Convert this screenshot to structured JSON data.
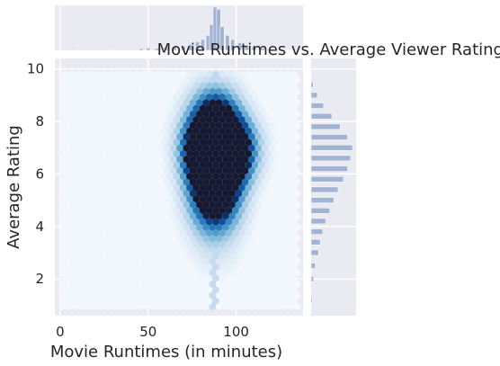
{
  "chart_data": {
    "type": "heatmap",
    "subtype": "hexbin-joint-plot",
    "title": "Movie Runtimes vs. Average Viewer Ratings",
    "xlabel": "Movie Runtimes (in minutes)",
    "ylabel": "Average Rating",
    "xlim": [
      -3,
      138
    ],
    "ylim": [
      0.6,
      10.4
    ],
    "xticks": [
      0,
      50,
      100
    ],
    "yticks": [
      2,
      4,
      6,
      8,
      10
    ],
    "grid": true,
    "colormap": "Blues (white to navy)",
    "background": "#eaeaf2",
    "marginal_histograms": {
      "top_x": "Movie Runtimes (in minutes)",
      "right_y": "Average Rating"
    },
    "hexbin_density": [
      {
        "x": 88,
        "y": 9.0,
        "level": 0.3
      },
      {
        "x": 88,
        "y": 8.5,
        "level": 0.5
      },
      {
        "x": 88,
        "y": 8.0,
        "level": 0.7
      },
      {
        "x": 88,
        "y": 7.6,
        "level": 0.85
      },
      {
        "x": 88,
        "y": 7.2,
        "level": 0.9
      },
      {
        "x": 88,
        "y": 6.8,
        "level": 1.0
      },
      {
        "x": 88,
        "y": 6.4,
        "level": 0.95
      },
      {
        "x": 88,
        "y": 6.0,
        "level": 0.9
      },
      {
        "x": 88,
        "y": 5.6,
        "level": 0.8
      },
      {
        "x": 88,
        "y": 5.2,
        "level": 0.65
      },
      {
        "x": 88,
        "y": 4.8,
        "level": 0.5
      },
      {
        "x": 88,
        "y": 4.4,
        "level": 0.35
      },
      {
        "x": 88,
        "y": 4.0,
        "level": 0.25
      },
      {
        "x": 88,
        "y": 3.4,
        "level": 0.15
      },
      {
        "x": 88,
        "y": 2.6,
        "level": 0.08
      },
      {
        "x": 95,
        "y": 7.0,
        "level": 0.7
      },
      {
        "x": 98,
        "y": 6.4,
        "level": 0.6
      },
      {
        "x": 100,
        "y": 7.4,
        "level": 0.45
      },
      {
        "x": 82,
        "y": 6.6,
        "level": 0.45
      },
      {
        "x": 80,
        "y": 7.4,
        "level": 0.35
      }
    ],
    "top_histogram": {
      "bin_centers": [
        10,
        20,
        30,
        40,
        46,
        50,
        55,
        60,
        65,
        70,
        74,
        78,
        81,
        84,
        86,
        88,
        90,
        92,
        95,
        98,
        102,
        106,
        110,
        115,
        120,
        125,
        130
      ],
      "counts": [
        0.003,
        0.005,
        0.008,
        0.02,
        0.04,
        0.06,
        0.05,
        0.07,
        0.08,
        0.1,
        0.14,
        0.2,
        0.25,
        0.35,
        0.6,
        1.0,
        0.95,
        0.55,
        0.35,
        0.25,
        0.18,
        0.12,
        0.08,
        0.05,
        0.03,
        0.02,
        0.01
      ]
    },
    "right_histogram": {
      "bin_centers": [
        1.2,
        2.0,
        2.5,
        3.0,
        3.4,
        3.8,
        4.2,
        4.6,
        5.0,
        5.4,
        5.8,
        6.2,
        6.6,
        7.0,
        7.4,
        7.8,
        8.2,
        8.6,
        9.0,
        9.4
      ],
      "counts": [
        0.03,
        0.06,
        0.1,
        0.18,
        0.22,
        0.28,
        0.35,
        0.45,
        0.55,
        0.65,
        0.78,
        0.88,
        0.95,
        1.0,
        0.88,
        0.7,
        0.5,
        0.3,
        0.15,
        0.05
      ]
    }
  }
}
